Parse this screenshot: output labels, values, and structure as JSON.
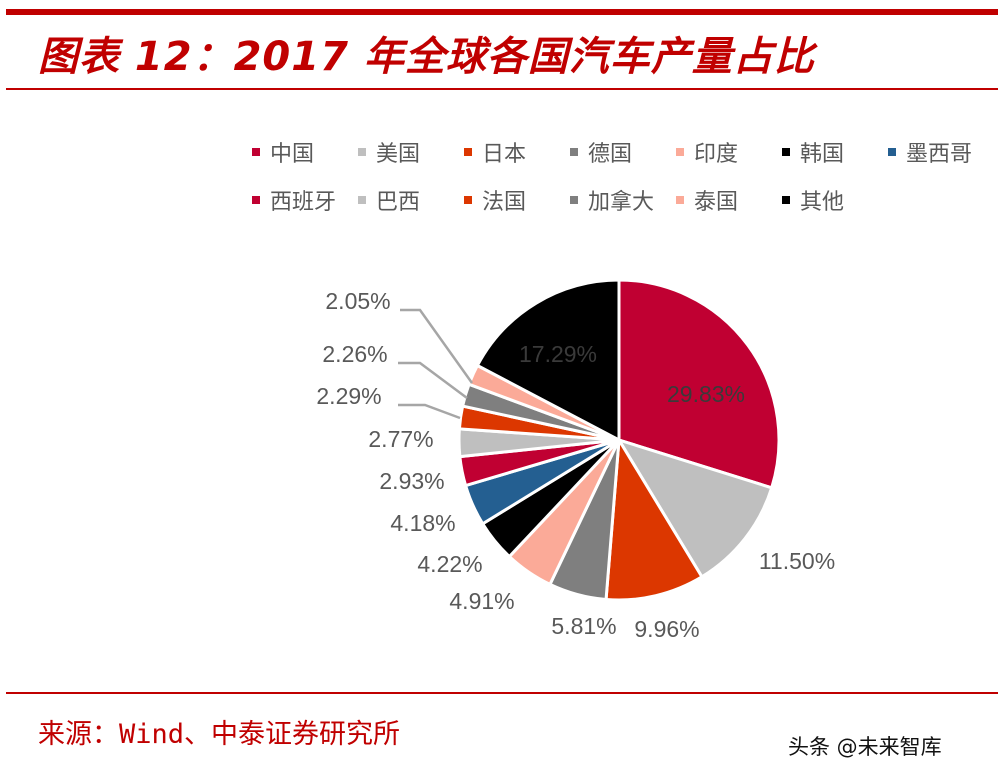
{
  "header": {
    "title": "图表 12：2017 年全球各国汽车产量占比"
  },
  "footer": {
    "source": "来源：Wind、中泰证券研究所",
    "watermark": "头条 @未来智库"
  },
  "legend": {
    "rows": [
      [
        {
          "label": "中国",
          "color": "#c00032"
        },
        {
          "label": "美国",
          "color": "#bfbfbf"
        },
        {
          "label": "日本",
          "color": "#dc3700"
        },
        {
          "label": "德国",
          "color": "#7f7f7f"
        },
        {
          "label": "印度",
          "color": "#fbaa98"
        },
        {
          "label": "韩国",
          "color": "#000000"
        },
        {
          "label": "墨西哥",
          "color": "#245f91"
        }
      ],
      [
        {
          "label": "西班牙",
          "color": "#c00032"
        },
        {
          "label": "巴西",
          "color": "#bfbfbf"
        },
        {
          "label": "法国",
          "color": "#dc3700"
        },
        {
          "label": "加拿大",
          "color": "#7f7f7f"
        },
        {
          "label": "泰国",
          "color": "#fbaa98"
        },
        {
          "label": "其他",
          "color": "#000000"
        }
      ]
    ]
  },
  "chart_data": {
    "type": "pie",
    "title": "图表 12：2017 年全球各国汽车产量占比",
    "categories": [
      "中国",
      "美国",
      "日本",
      "德国",
      "印度",
      "韩国",
      "墨西哥",
      "西班牙",
      "巴西",
      "法国",
      "加拿大",
      "泰国",
      "其他"
    ],
    "values": [
      29.83,
      11.5,
      9.96,
      5.81,
      4.91,
      4.22,
      4.18,
      2.93,
      2.77,
      2.29,
      2.26,
      2.05,
      17.29
    ],
    "labels": [
      "29.83%",
      "11.50%",
      "9.96%",
      "5.81%",
      "4.91%",
      "4.22%",
      "4.18%",
      "2.93%",
      "2.77%",
      "2.29%",
      "2.26%",
      "2.05%",
      "17.29%"
    ],
    "colors": [
      "#c00032",
      "#bfbfbf",
      "#dc3700",
      "#7f7f7f",
      "#fbaa98",
      "#000000",
      "#245f91",
      "#c00032",
      "#bfbfbf",
      "#dc3700",
      "#7f7f7f",
      "#fbaa98",
      "#000000"
    ],
    "unit": "%",
    "legend_position": "top",
    "start_angle": "12 o'clock, clockwise",
    "source": "Wind、中泰证券研究所"
  }
}
